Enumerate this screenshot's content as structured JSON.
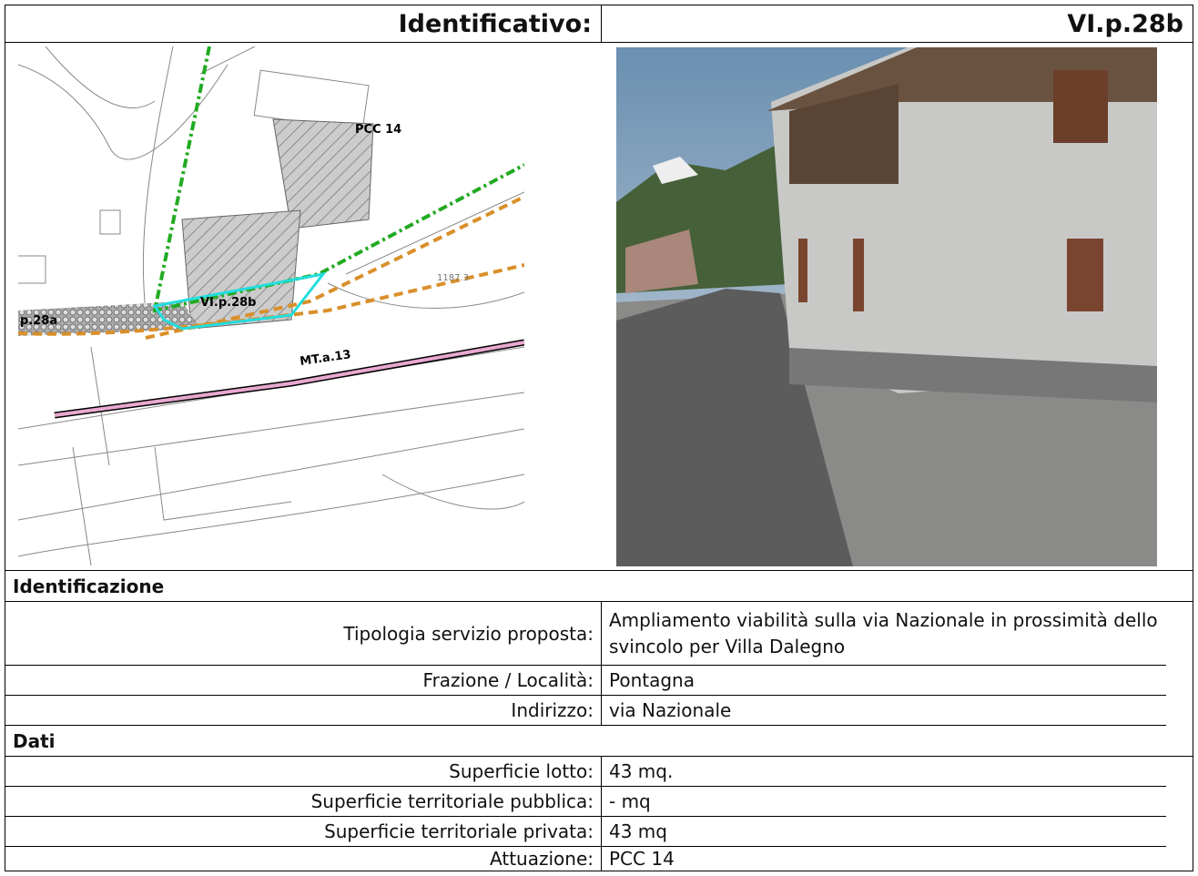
{
  "header": {
    "label": "Identificativo:",
    "code": "VI.p.28b"
  },
  "map": {
    "labels": [
      "PCC 14",
      "VI.p.28b",
      "p.28a",
      "MT.a.13",
      "1187.3"
    ]
  },
  "sections": [
    {
      "title": "Identificazione",
      "rows": [
        [
          "Tipologia servizio proposta:",
          "Ampliamento viabilità sulla via Nazionale in prossimità dello svincolo per Villa Dalegno"
        ],
        [
          "Frazione / Località:",
          "Pontagna"
        ],
        [
          "Indirizzo:",
          "via Nazionale"
        ]
      ]
    },
    {
      "title": "Dati",
      "rows": [
        [
          "Superficie lotto:",
          "43 mq."
        ],
        [
          "Superficie territoriale pubblica:",
          "- mq"
        ],
        [
          "Superficie territoriale privata:",
          "43 mq"
        ],
        [
          "Attuazione:",
          "PCC 14"
        ]
      ]
    }
  ]
}
